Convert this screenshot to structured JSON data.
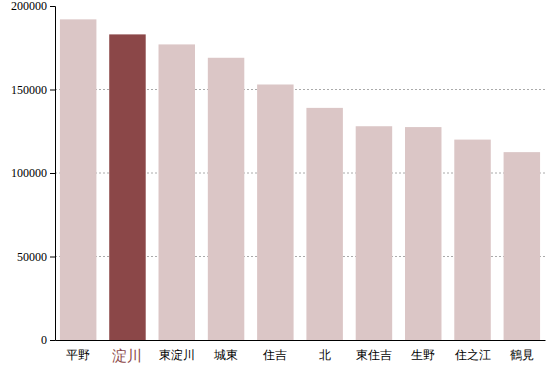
{
  "chart_data": {
    "type": "bar",
    "categories": [
      "平野",
      "淀川",
      "東淀川",
      "城東",
      "住吉",
      "北",
      "東住吉",
      "生野",
      "住之江",
      "鶴見"
    ],
    "values": [
      192000,
      183000,
      177000,
      169000,
      153000,
      139000,
      128000,
      127500,
      120000,
      112500
    ],
    "colors": [
      "#dbc6c6",
      "#8b4748",
      "#dbc6c6",
      "#dbc6c6",
      "#dbc6c6",
      "#dbc6c6",
      "#dbc6c6",
      "#dbc6c6",
      "#dbc6c6",
      "#dbc6c6"
    ],
    "ylim": [
      0,
      200000
    ],
    "yticks": [
      0,
      50000,
      100000,
      150000,
      200000
    ],
    "grid": true
  }
}
